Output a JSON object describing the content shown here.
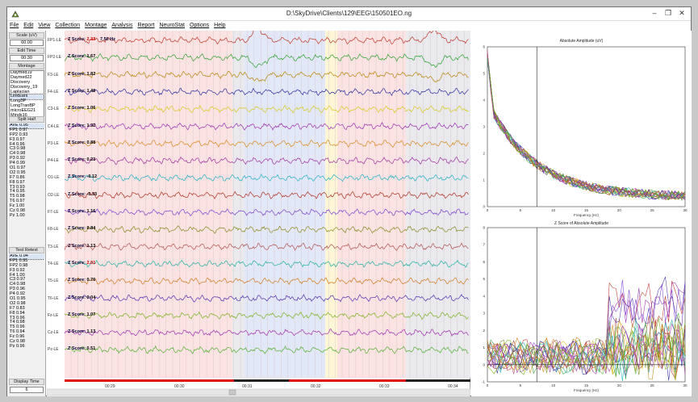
{
  "window": {
    "title": "D:\\SkyDrive\\Clients\\129\\EEG\\150501EO.ng",
    "minimize": "–",
    "restore": "❐",
    "close": "✕"
  },
  "menu": [
    "File",
    "Edit",
    "View",
    "Collection",
    "Montage",
    "Analysis",
    "Report",
    "NeuroStat",
    "Options",
    "Help"
  ],
  "left_panel": {
    "scale_label": "Scale (uV)",
    "scale_value": "60.00",
    "edit_time_label": "Edit Time",
    "edit_time_value": "00:30",
    "montage_label": "Montage",
    "montages": [
      "Daymed19",
      "Daymed22",
      "Discovery",
      "Discovery_19",
      "Laplacian",
      "LinkEars",
      "LongBP",
      "LongTranBP",
      "microEEG21",
      "Minds16"
    ],
    "montage_selected": "LinkEars",
    "split_half_label": "Split Half",
    "split_half": [
      "AVE 0.95",
      "FP1 0.97",
      "FP2 0.93",
      "F3  0.97",
      "F4  0.96",
      "C3  0.98",
      "C4  0.98",
      "P3  0.92",
      "P4  0.99",
      "O1  0.97",
      "O2  0.95",
      "F7  0.86",
      "F8  0.97",
      "T3  0.93",
      "T4  0.95",
      "T5  0.98",
      "T6  0.97",
      "Fz  1.00",
      "Cz  0.98",
      "Pz  1.00"
    ],
    "test_retest_label": "Test Retest",
    "test_retest": [
      "AVE 0.94",
      "FP1 0.95",
      "FP2 0.98",
      "F3  0.92",
      "F4  1.00",
      "C3  0.97",
      "C4  0.98",
      "P3  0.96",
      "P4  0.92",
      "O1  0.95",
      "O2  0.98",
      "F7  0.83",
      "F8  0.94",
      "T3  0.96",
      "T4  0.98",
      "T5  0.96",
      "T6  0.94",
      "Fz  0.96",
      "Cz  0.98",
      "Pz  0.96"
    ],
    "display_time_label": "Display Time",
    "display_time_value": "6"
  },
  "eeg": {
    "freq_readout": "7.50 Hz",
    "z_prefix": "Z Score:",
    "channels": [
      {
        "name": "FP1-LE",
        "z": "2.33",
        "color": "#c0392b",
        "alert": true
      },
      {
        "name": "FP2-LE",
        "z": "1.67",
        "color": "#2ca02c",
        "alert": false
      },
      {
        "name": "F3-LE",
        "z": "1.82",
        "color": "#b8860b",
        "alert": false
      },
      {
        "name": "F4-LE",
        "z": "1.46",
        "color": "#2c2ca0",
        "alert": false
      },
      {
        "name": "C3-LE",
        "z": "1.06",
        "color": "#d6c81a",
        "alert": false
      },
      {
        "name": "C4-LE",
        "z": "1.32",
        "color": "#9b30b0",
        "alert": false
      },
      {
        "name": "P3-LE",
        "z": "0.88",
        "color": "#d98a1e",
        "alert": false
      },
      {
        "name": "P4-LE",
        "z": "0.23",
        "color": "#a030a0",
        "alert": false
      },
      {
        "name": "O1-LE",
        "z": "-0.12",
        "color": "#20b0c0",
        "alert": false
      },
      {
        "name": "O2-LE",
        "z": "-0.33",
        "color": "#b03020",
        "alert": false
      },
      {
        "name": "F7-LE",
        "z": "1.16",
        "color": "#7b3fd0",
        "alert": false
      },
      {
        "name": "F8-LE",
        "z": "0.84",
        "color": "#8a8a20",
        "alert": false
      },
      {
        "name": "T3-LE",
        "z": "1.13",
        "color": "#b05050",
        "alert": false
      },
      {
        "name": "T4-LE",
        "z": "2.01",
        "color": "#20b0a0",
        "alert": true
      },
      {
        "name": "T5-LE",
        "z": "0.76",
        "color": "#d07a20",
        "alert": false
      },
      {
        "name": "T6-LE",
        "z": "0.04",
        "color": "#5030b0",
        "alert": false
      },
      {
        "name": "Fz-LE",
        "z": "1.07",
        "color": "#7ab020",
        "alert": false
      },
      {
        "name": "Cz-LE",
        "z": "1.13",
        "color": "#a030b0",
        "alert": false
      },
      {
        "name": "Pz-LE",
        "z": "0.51",
        "color": "#50b030",
        "alert": false
      }
    ],
    "time_ticks": [
      "00:29",
      "00:30",
      "00:31",
      "00:32",
      "00:33",
      "00:34"
    ]
  },
  "plots": {
    "amplitude_title": "Absolute Amplitude (uV)",
    "amplitude_yticks": [
      "6",
      "5",
      "4",
      "3",
      "2",
      "1",
      "0"
    ],
    "zscore_title": "Z Score of Absolute Amplitude",
    "zscore_yticks": [
      "8",
      "7",
      "6",
      "5",
      "4",
      "3",
      "2",
      "1",
      "0",
      "-1"
    ],
    "xticks": [
      "0",
      "5",
      "10",
      "15",
      "20",
      "25",
      "30"
    ],
    "xlabel": "Frequency (Hz)"
  },
  "colors": {
    "band_pink": "#fbe3e3",
    "band_gray": "#e9e9ee",
    "band_blue": "#e3e8f8",
    "timebar_red": "#e01010"
  }
}
